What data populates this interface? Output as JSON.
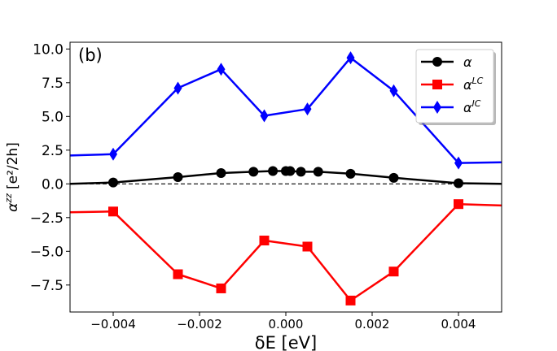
{
  "chart_data": {
    "type": "line",
    "panel_label": "(b)",
    "xlabel": "δE [eV]",
    "ylabel_main": "α",
    "ylabel_super": "zz",
    "ylabel_unit": "[e²/2h]",
    "xlim": [
      -0.005,
      0.005
    ],
    "ylim": [
      -9.5,
      10.5
    ],
    "xticks": [
      -0.004,
      -0.002,
      0.0,
      0.002,
      0.004
    ],
    "xtick_labels": [
      "−0.004",
      "−0.002",
      "0.000",
      "0.002",
      "0.004"
    ],
    "yticks": [
      -7.5,
      -5.0,
      -2.5,
      0.0,
      2.5,
      5.0,
      7.5,
      10.0
    ],
    "ytick_labels": [
      "−7.5",
      "−5.0",
      "−2.5",
      "0.0",
      "2.5",
      "5.0",
      "7.5",
      "10.0"
    ],
    "reference_line_y": 0,
    "legend_position": "top-right",
    "series": [
      {
        "name": "α",
        "legend_base": "α",
        "legend_sup": "",
        "color": "#000000",
        "marker": "circle",
        "x": [
          -0.005,
          -0.004,
          -0.0025,
          -0.0015,
          -0.00075,
          -0.0003,
          0.0,
          0.0001,
          0.00035,
          0.00075,
          0.0015,
          0.0025,
          0.004,
          0.005
        ],
        "y": [
          0.0,
          0.1,
          0.5,
          0.8,
          0.9,
          0.95,
          0.95,
          0.95,
          0.9,
          0.9,
          0.75,
          0.45,
          0.05,
          0.0
        ],
        "marker_mask": [
          false,
          true,
          true,
          true,
          true,
          true,
          true,
          true,
          true,
          true,
          true,
          true,
          true,
          false
        ]
      },
      {
        "name": "α^LC",
        "legend_base": "α",
        "legend_sup": "LC",
        "color": "#ff0000",
        "marker": "square",
        "x": [
          -0.005,
          -0.004,
          -0.0025,
          -0.0015,
          -0.0005,
          0.0005,
          0.0015,
          0.0025,
          0.004,
          0.005
        ],
        "y": [
          -2.1,
          -2.05,
          -6.7,
          -7.75,
          -4.2,
          -4.65,
          -8.65,
          -6.5,
          -1.5,
          -1.6
        ],
        "marker_mask": [
          false,
          true,
          true,
          true,
          true,
          true,
          true,
          true,
          true,
          false
        ]
      },
      {
        "name": "α^IC",
        "legend_base": "α",
        "legend_sup": "IC",
        "color": "#0000ff",
        "marker": "diamond",
        "x": [
          -0.005,
          -0.004,
          -0.0025,
          -0.0015,
          -0.0005,
          0.0005,
          0.0015,
          0.0025,
          0.004,
          0.005
        ],
        "y": [
          2.1,
          2.2,
          7.1,
          8.5,
          5.05,
          5.55,
          9.35,
          6.9,
          1.55,
          1.6
        ],
        "marker_mask": [
          false,
          true,
          true,
          true,
          true,
          true,
          true,
          true,
          true,
          false
        ]
      }
    ]
  }
}
